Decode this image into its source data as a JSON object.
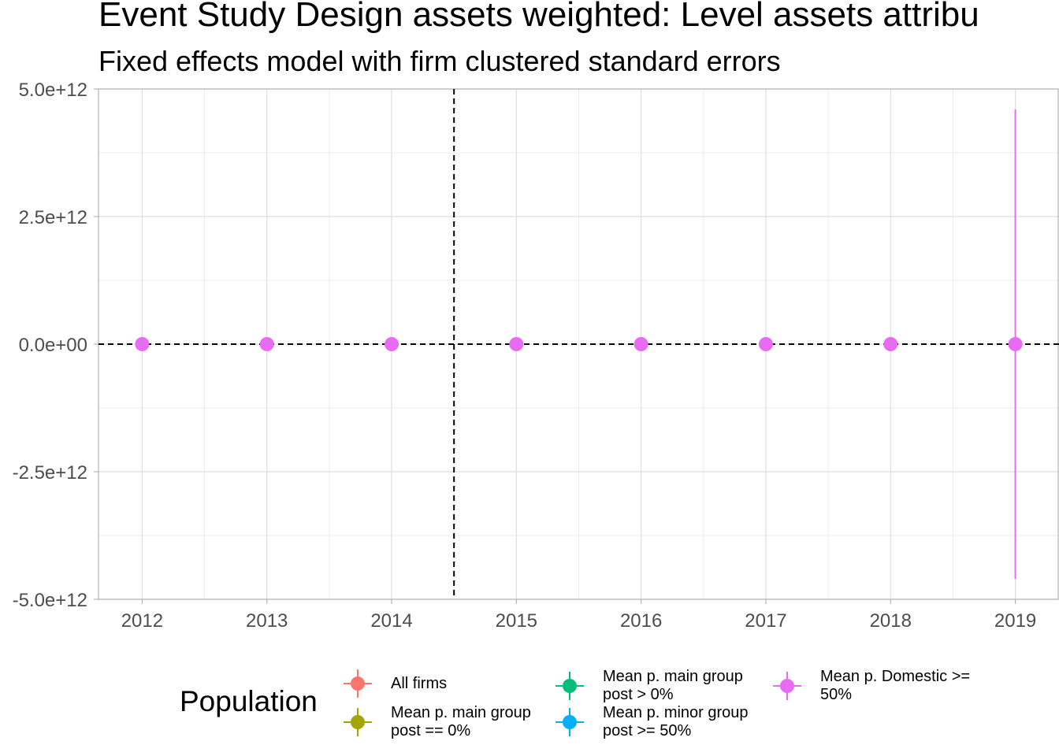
{
  "chart_data": {
    "type": "scatter",
    "title": "Event Study Design assets weighted: Level assets attributable to the p...",
    "title_visible": "Event Study Design assets weighted: Level assets attribu",
    "subtitle": "Fixed effects model with firm clustered standard errors",
    "xlabel": "",
    "ylabel": "",
    "x_ticks": [
      "2012",
      "2013",
      "2014",
      "2015",
      "2016",
      "2017",
      "2018",
      "2019"
    ],
    "y_ticks": [
      "5.0e+12",
      "2.5e+12",
      "0.0e+00",
      "-2.5e+12",
      "-5.0e+12"
    ],
    "ylim": [
      -5000000000000.0,
      5000000000000.0
    ],
    "xlim": [
      2011.65,
      2019.35
    ],
    "grid": true,
    "reference_lines": {
      "horizontal_y": 0,
      "vertical_x": 2014.5,
      "style": "dashed"
    },
    "legend": {
      "title": "Population",
      "placement": "bottom",
      "entries": [
        {
          "label": "All firms",
          "color": "#F8766D"
        },
        {
          "label": "Mean p. main group\npost == 0%",
          "color": "#A3A500"
        },
        {
          "label": "Mean p. main group\npost > 0%",
          "color": "#00BF7D"
        },
        {
          "label": "Mean p. minor group\npost >= 50%",
          "color": "#00B0F6"
        },
        {
          "label": "Mean p. Domestic >=\n50%",
          "color": "#E76BF3"
        }
      ]
    },
    "series": [
      {
        "name": "Mean p. Domestic >=\n50%",
        "color": "#E76BF3",
        "points": [
          {
            "x": 2012,
            "y": 0,
            "lo": 0,
            "hi": 0
          },
          {
            "x": 2013,
            "y": 0,
            "lo": 0,
            "hi": 0
          },
          {
            "x": 2014,
            "y": 0,
            "lo": 0,
            "hi": 0
          },
          {
            "x": 2015,
            "y": 0,
            "lo": 0,
            "hi": 0
          },
          {
            "x": 2016,
            "y": 0,
            "lo": 0,
            "hi": 0
          },
          {
            "x": 2017,
            "y": 0,
            "lo": 0,
            "hi": 0
          },
          {
            "x": 2018,
            "y": 0,
            "lo": 0,
            "hi": 0
          },
          {
            "x": 2019,
            "y": 0,
            "lo": -4600000000000.0,
            "hi": 4600000000000.0
          }
        ]
      }
    ]
  }
}
